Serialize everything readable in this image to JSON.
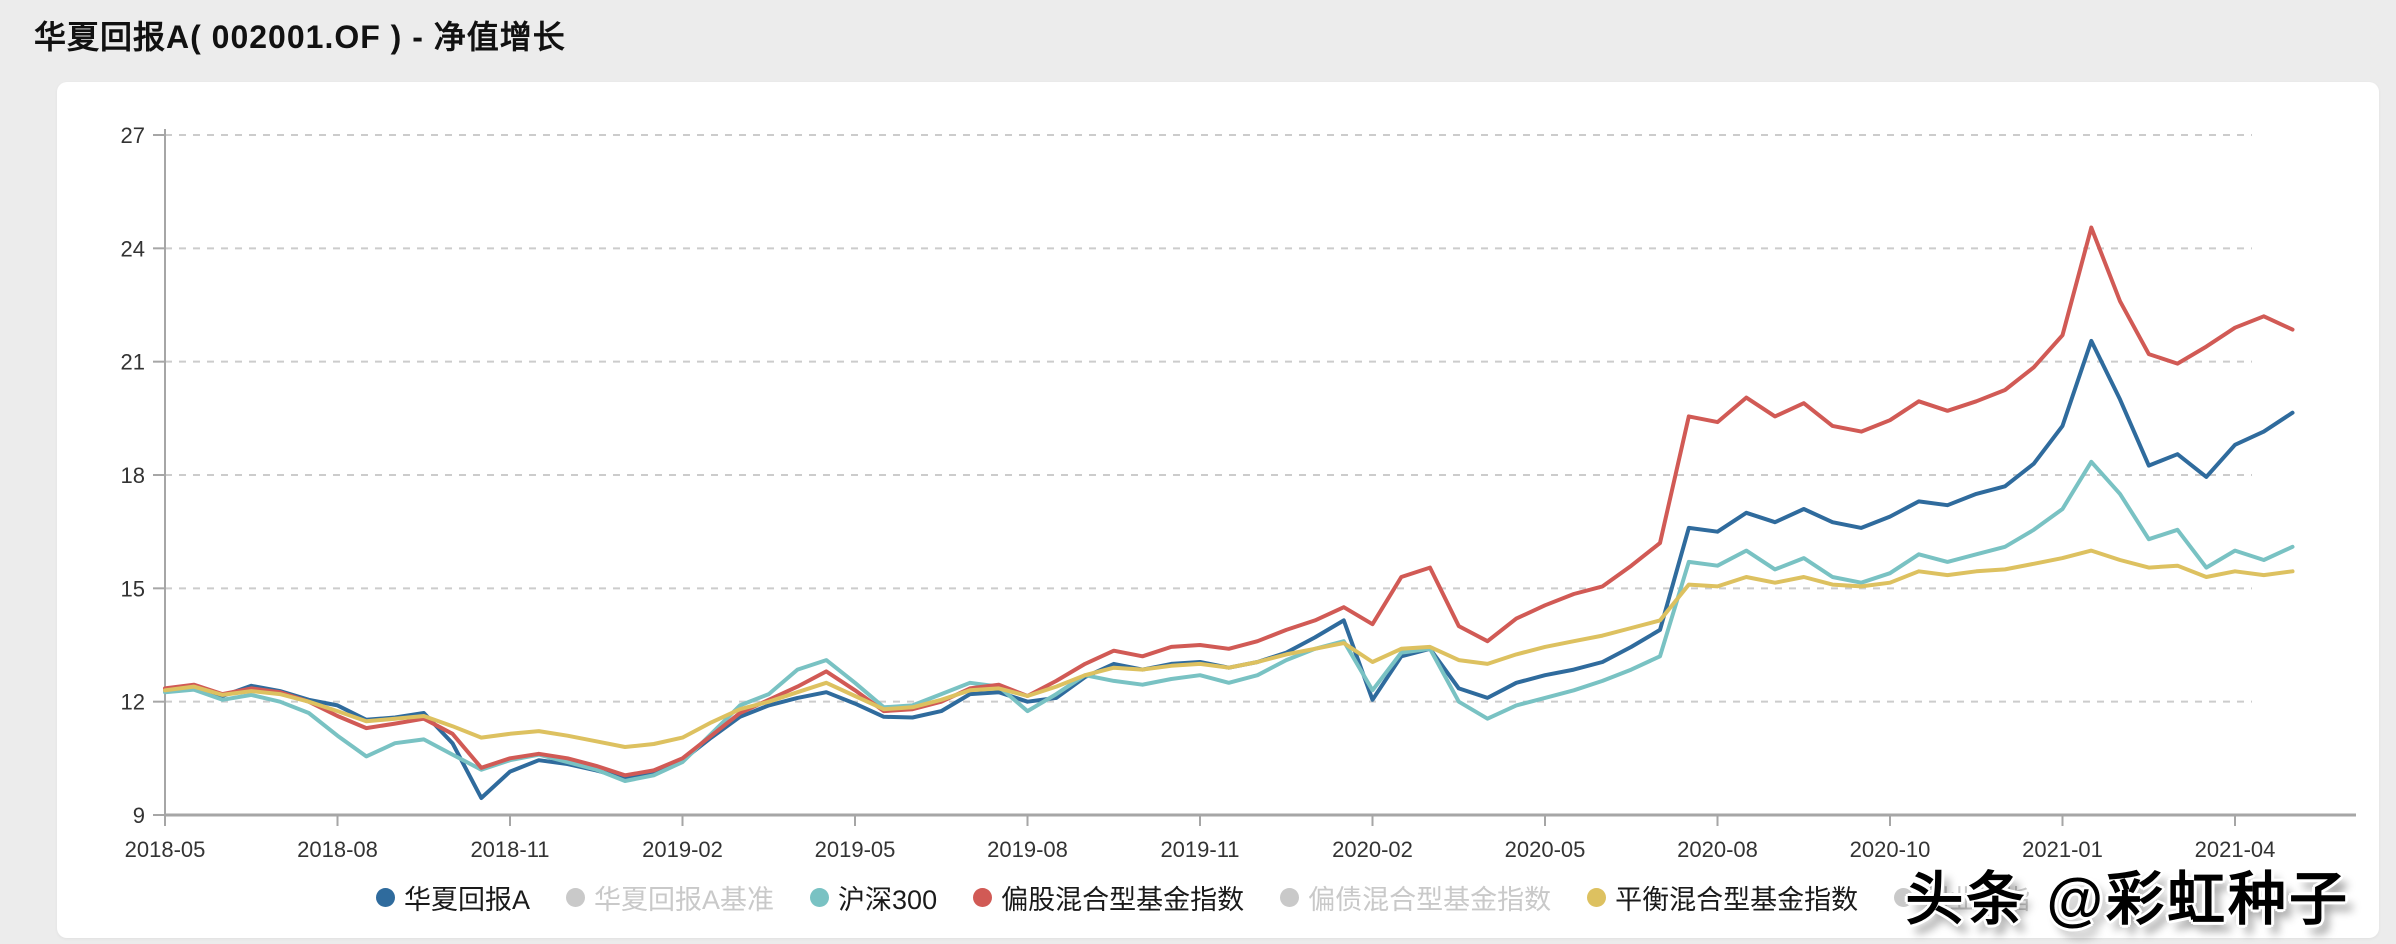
{
  "page": {
    "title": "华夏回报A( 002001.OF ) - 净值增长"
  },
  "watermark": {
    "text": "头条 @彩虹种子"
  },
  "palette": {
    "background": "#ececec",
    "card": "#ffffff",
    "title_text": "#111111",
    "grid": "#cccccc",
    "axis": "#a6a6a6",
    "tick_text": "#333333",
    "inactive": "#c9c9c9"
  },
  "chart_data": {
    "type": "line",
    "title": "净值增长",
    "xlabel": "",
    "ylabel": "",
    "ylim": [
      9,
      27
    ],
    "y_ticks": [
      9,
      12,
      15,
      18,
      21,
      24,
      27
    ],
    "grid": "dashed-horizontal",
    "legend_position": "bottom",
    "x_tick_labels": [
      "2018-05",
      "2018-08",
      "2018-11",
      "2019-02",
      "2019-05",
      "2019-08",
      "2019-11",
      "2020-02",
      "2020-05",
      "2020-08",
      "2020-10",
      "2021-01",
      "2021-04"
    ],
    "x_note": "series values sampled ~semi-monthly from 2018-05 to 2021-04, 75 points per series, evenly spaced across 12.33 tick intervals",
    "series": [
      {
        "name": "华夏回报A",
        "slug": "huaxia-return-a",
        "color": "#2f6b9d",
        "active": true,
        "values": [
          12.3,
          12.38,
          12.15,
          12.42,
          12.28,
          12.05,
          11.9,
          11.52,
          11.58,
          11.7,
          10.9,
          9.45,
          10.15,
          10.45,
          10.35,
          10.18,
          9.98,
          10.1,
          10.45,
          11.05,
          11.6,
          11.9,
          12.1,
          12.25,
          11.95,
          11.6,
          11.58,
          11.75,
          12.2,
          12.25,
          12.0,
          12.1,
          12.65,
          13.0,
          12.85,
          13.0,
          13.05,
          12.9,
          13.05,
          13.3,
          13.7,
          14.15,
          12.05,
          13.2,
          13.4,
          12.35,
          12.1,
          12.5,
          12.7,
          12.85,
          13.05,
          13.45,
          13.9,
          16.6,
          16.5,
          17.0,
          16.75,
          17.1,
          16.75,
          16.6,
          16.9,
          17.3,
          17.2,
          17.5,
          17.7,
          18.3,
          19.3,
          21.55,
          20.0,
          18.25,
          18.55,
          17.95,
          18.8,
          19.15,
          19.65
        ]
      },
      {
        "name": "华夏回报A基准",
        "slug": "huaxia-return-a-benchmark",
        "color": "#c9c9c9",
        "active": false,
        "values": []
      },
      {
        "name": "沪深300",
        "slug": "hs300-index",
        "color": "#79c2c3",
        "active": true,
        "values": [
          12.25,
          12.32,
          12.05,
          12.18,
          12.0,
          11.7,
          11.1,
          10.55,
          10.9,
          11.0,
          10.6,
          10.2,
          10.45,
          10.6,
          10.4,
          10.2,
          9.9,
          10.05,
          10.4,
          11.15,
          11.9,
          12.2,
          12.85,
          13.1,
          12.5,
          11.85,
          11.9,
          12.2,
          12.5,
          12.4,
          11.75,
          12.2,
          12.7,
          12.55,
          12.45,
          12.6,
          12.7,
          12.5,
          12.7,
          13.1,
          13.4,
          13.6,
          12.3,
          13.3,
          13.4,
          12.0,
          11.55,
          11.9,
          12.1,
          12.3,
          12.55,
          12.85,
          13.2,
          15.7,
          15.6,
          16.0,
          15.5,
          15.8,
          15.3,
          15.15,
          15.4,
          15.9,
          15.7,
          15.9,
          16.1,
          16.55,
          17.1,
          18.35,
          17.5,
          16.3,
          16.55,
          15.55,
          16.0,
          15.75,
          16.1
        ]
      },
      {
        "name": "偏股混合型基金指数",
        "slug": "equity-biased-mixed-fund-index",
        "color": "#d15a55",
        "active": true,
        "values": [
          12.35,
          12.45,
          12.2,
          12.35,
          12.25,
          12.0,
          11.62,
          11.3,
          11.42,
          11.55,
          11.15,
          10.25,
          10.5,
          10.62,
          10.5,
          10.3,
          10.05,
          10.18,
          10.5,
          11.1,
          11.7,
          12.05,
          12.4,
          12.8,
          12.3,
          11.75,
          11.8,
          12.0,
          12.35,
          12.45,
          12.15,
          12.55,
          13.0,
          13.35,
          13.2,
          13.45,
          13.5,
          13.4,
          13.6,
          13.9,
          14.15,
          14.5,
          14.05,
          15.3,
          15.55,
          14.0,
          13.6,
          14.2,
          14.55,
          14.85,
          15.05,
          15.6,
          16.2,
          19.55,
          19.4,
          20.05,
          19.55,
          19.9,
          19.3,
          19.15,
          19.45,
          19.95,
          19.7,
          19.95,
          20.25,
          20.85,
          21.7,
          24.55,
          22.6,
          21.2,
          20.95,
          21.4,
          21.9,
          22.2,
          21.85
        ]
      },
      {
        "name": "偏债混合型基金指数",
        "slug": "bond-biased-mixed-fund-index",
        "color": "#c9c9c9",
        "active": false,
        "values": []
      },
      {
        "name": "平衡混合型基金指数",
        "slug": "balanced-mixed-fund-index",
        "color": "#ddc160",
        "active": true,
        "values": [
          12.3,
          12.4,
          12.18,
          12.28,
          12.2,
          12.0,
          11.75,
          11.48,
          11.55,
          11.62,
          11.35,
          11.05,
          11.15,
          11.22,
          11.1,
          10.95,
          10.8,
          10.88,
          11.05,
          11.45,
          11.8,
          12.0,
          12.25,
          12.5,
          12.15,
          11.8,
          11.85,
          12.05,
          12.3,
          12.35,
          12.15,
          12.4,
          12.7,
          12.9,
          12.85,
          12.95,
          13.0,
          12.9,
          13.05,
          13.25,
          13.4,
          13.55,
          13.05,
          13.4,
          13.45,
          13.1,
          13.0,
          13.25,
          13.45,
          13.6,
          13.75,
          13.95,
          14.15,
          15.1,
          15.05,
          15.3,
          15.15,
          15.3,
          15.1,
          15.05,
          15.15,
          15.45,
          15.35,
          15.45,
          15.5,
          15.65,
          15.8,
          16.0,
          15.75,
          15.55,
          15.6,
          15.3,
          15.45,
          15.35,
          15.45
        ]
      },
      {
        "name": "创业板指",
        "slug": "chinext-index",
        "color": "#c9c9c9",
        "active": false,
        "values": [],
        "note": "partially hidden behind watermark"
      }
    ]
  }
}
